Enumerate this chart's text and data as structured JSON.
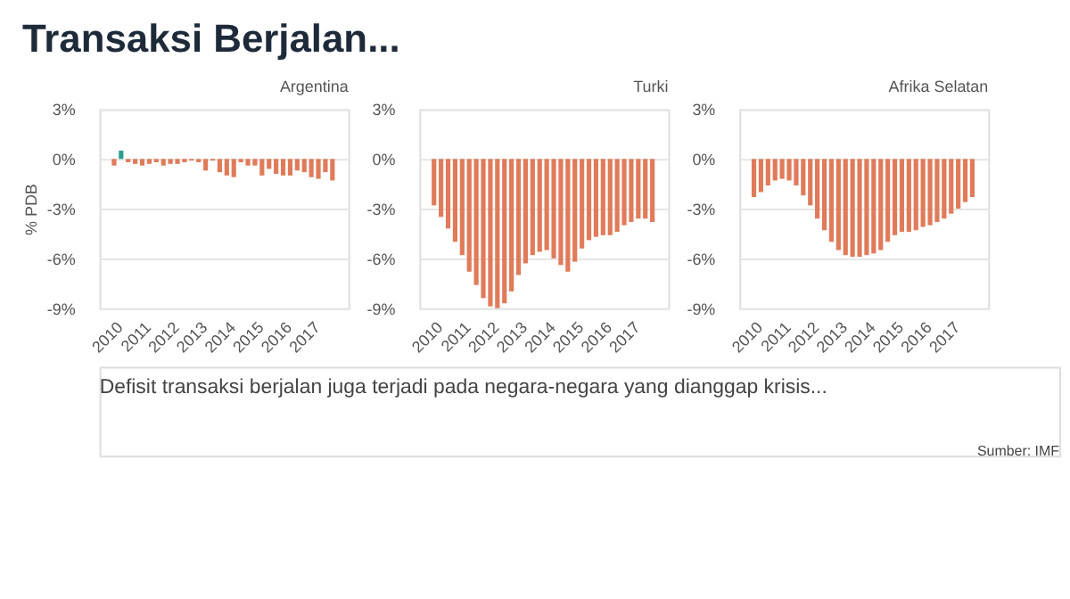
{
  "chart_data": [
    {
      "type": "bar",
      "title": "Transaksi Berjalan...",
      "subtitle": "Argentina",
      "ylabel": "% PDB",
      "annotations": [
        "Defisit transaksi berjalan juga terjadi pada negara-negara yang dianggap krisis...",
        "Sumber: IMF"
      ],
      "x": [
        2010.0,
        2010.25,
        2010.5,
        2010.75,
        2011.0,
        2011.25,
        2011.5,
        2011.75,
        2012.0,
        2012.25,
        2012.5,
        2012.75,
        2013.0,
        2013.25,
        2013.5,
        2013.75,
        2014.0,
        2014.25,
        2014.5,
        2014.75,
        2015.0,
        2015.25,
        2015.5,
        2015.75,
        2016.0,
        2016.25,
        2016.5,
        2016.75,
        2017.0,
        2017.25,
        2017.5,
        2017.75
      ],
      "values": [
        -0.4,
        0.5,
        -0.2,
        -0.3,
        -0.4,
        -0.3,
        -0.2,
        -0.4,
        -0.3,
        -0.3,
        -0.2,
        -0.1,
        -0.2,
        -0.7,
        -0.1,
        -0.8,
        -1.0,
        -1.1,
        -0.2,
        -0.4,
        -0.4,
        -1.0,
        -0.6,
        -0.9,
        -1.0,
        -1.0,
        -0.7,
        -0.8,
        -1.1,
        -1.2,
        -0.8,
        -1.3
      ],
      "colors": [
        "#e07b5a",
        "#2a9d8f",
        "#e07b5a",
        "#e07b5a",
        "#e07b5a",
        "#e07b5a",
        "#e07b5a",
        "#e07b5a",
        "#e07b5a",
        "#e07b5a",
        "#e07b5a",
        "#e07b5a",
        "#e07b5a",
        "#e07b5a",
        "#e07b5a",
        "#e07b5a",
        "#e07b5a",
        "#e07b5a",
        "#e07b5a",
        "#e07b5a",
        "#e07b5a",
        "#e07b5a",
        "#e07b5a",
        "#e07b5a",
        "#e07b5a",
        "#e07b5a",
        "#e07b5a",
        "#e07b5a",
        "#e07b5a",
        "#e07b5a",
        "#e07b5a",
        "#e07b5a"
      ],
      "xlim": [
        2009.8,
        2018.0
      ],
      "xticks": [
        2010,
        2011,
        2012,
        2013,
        2014,
        2015,
        2016,
        2017
      ],
      "ylim": [
        -9,
        3
      ],
      "yticks": [
        {
          "value": 3,
          "label": "3%"
        },
        {
          "value": 0,
          "label": "0%"
        },
        {
          "value": -3,
          "label": "-3%"
        },
        {
          "value": -6,
          "label": "-6%"
        },
        {
          "value": -9,
          "label": "-9%"
        }
      ],
      "grid": "y"
    },
    {
      "type": "bar",
      "subtitle": "Turki",
      "x": [
        2010.0,
        2010.25,
        2010.5,
        2010.75,
        2011.0,
        2011.25,
        2011.5,
        2011.75,
        2012.0,
        2012.25,
        2012.5,
        2012.75,
        2013.0,
        2013.25,
        2013.5,
        2013.75,
        2014.0,
        2014.25,
        2014.5,
        2014.75,
        2015.0,
        2015.25,
        2015.5,
        2015.75,
        2016.0,
        2016.25,
        2016.5,
        2016.75,
        2017.0,
        2017.25,
        2017.5,
        2017.75
      ],
      "values": [
        -2.8,
        -3.5,
        -4.2,
        -5.0,
        -5.8,
        -6.8,
        -7.6,
        -8.4,
        -8.9,
        -9.0,
        -8.7,
        -8.0,
        -7.0,
        -6.3,
        -5.8,
        -5.6,
        -5.5,
        -6.0,
        -6.4,
        -6.8,
        -6.2,
        -5.4,
        -4.9,
        -4.7,
        -4.6,
        -4.6,
        -4.4,
        -4.0,
        -3.8,
        -3.6,
        -3.6,
        -3.8
      ],
      "colors": [
        "#e07b5a",
        "#e07b5a",
        "#e07b5a",
        "#e07b5a",
        "#e07b5a",
        "#e07b5a",
        "#e07b5a",
        "#e07b5a",
        "#e07b5a",
        "#e07b5a",
        "#e07b5a",
        "#e07b5a",
        "#e07b5a",
        "#e07b5a",
        "#e07b5a",
        "#e07b5a",
        "#e07b5a",
        "#e07b5a",
        "#e07b5a",
        "#e07b5a",
        "#e07b5a",
        "#e07b5a",
        "#e07b5a",
        "#e07b5a",
        "#e07b5a",
        "#e07b5a",
        "#e07b5a",
        "#e07b5a",
        "#e07b5a",
        "#e07b5a",
        "#e07b5a",
        "#e07b5a"
      ],
      "xlim": [
        2009.8,
        2018.0
      ],
      "xticks": [
        2010,
        2011,
        2012,
        2013,
        2014,
        2015,
        2016,
        2017
      ],
      "ylim": [
        -9,
        3
      ],
      "yticks": [
        {
          "value": 3,
          "label": "3%"
        },
        {
          "value": 0,
          "label": "0%"
        },
        {
          "value": -3,
          "label": "-3%"
        },
        {
          "value": -6,
          "label": "-6%"
        },
        {
          "value": -9,
          "label": "-9%"
        }
      ],
      "grid": "y"
    },
    {
      "type": "bar",
      "subtitle": "Afrika Selatan",
      "x": [
        2010.0,
        2010.25,
        2010.5,
        2010.75,
        2011.0,
        2011.25,
        2011.5,
        2011.75,
        2012.0,
        2012.25,
        2012.5,
        2012.75,
        2013.0,
        2013.25,
        2013.5,
        2013.75,
        2014.0,
        2014.25,
        2014.5,
        2014.75,
        2015.0,
        2015.25,
        2015.5,
        2015.75,
        2016.0,
        2016.25,
        2016.5,
        2016.75,
        2017.0,
        2017.25,
        2017.5,
        2017.75
      ],
      "values": [
        -2.3,
        -2.0,
        -1.6,
        -1.3,
        -1.2,
        -1.3,
        -1.6,
        -2.2,
        -2.8,
        -3.6,
        -4.3,
        -5.0,
        -5.5,
        -5.8,
        -5.9,
        -5.9,
        -5.8,
        -5.7,
        -5.5,
        -5.0,
        -4.6,
        -4.4,
        -4.4,
        -4.3,
        -4.1,
        -4.0,
        -3.8,
        -3.6,
        -3.3,
        -3.0,
        -2.6,
        -2.3
      ],
      "colors": [
        "#e07b5a",
        "#e07b5a",
        "#e07b5a",
        "#e07b5a",
        "#e07b5a",
        "#e07b5a",
        "#e07b5a",
        "#e07b5a",
        "#e07b5a",
        "#e07b5a",
        "#e07b5a",
        "#e07b5a",
        "#e07b5a",
        "#e07b5a",
        "#e07b5a",
        "#e07b5a",
        "#e07b5a",
        "#e07b5a",
        "#e07b5a",
        "#e07b5a",
        "#e07b5a",
        "#e07b5a",
        "#e07b5a",
        "#e07b5a",
        "#e07b5a",
        "#e07b5a",
        "#e07b5a",
        "#e07b5a",
        "#e07b5a",
        "#e07b5a",
        "#e07b5a",
        "#e07b5a"
      ],
      "xlim": [
        2009.8,
        2018.0
      ],
      "xticks": [
        2010,
        2011,
        2012,
        2013,
        2014,
        2015,
        2016,
        2017
      ],
      "ylim": [
        -9,
        3
      ],
      "yticks": [
        {
          "value": 3,
          "label": "3%"
        },
        {
          "value": 0,
          "label": "0%"
        },
        {
          "value": -3,
          "label": "-3%"
        },
        {
          "value": -6,
          "label": "-6%"
        },
        {
          "value": -9,
          "label": "-9%"
        }
      ],
      "grid": "y"
    }
  ]
}
